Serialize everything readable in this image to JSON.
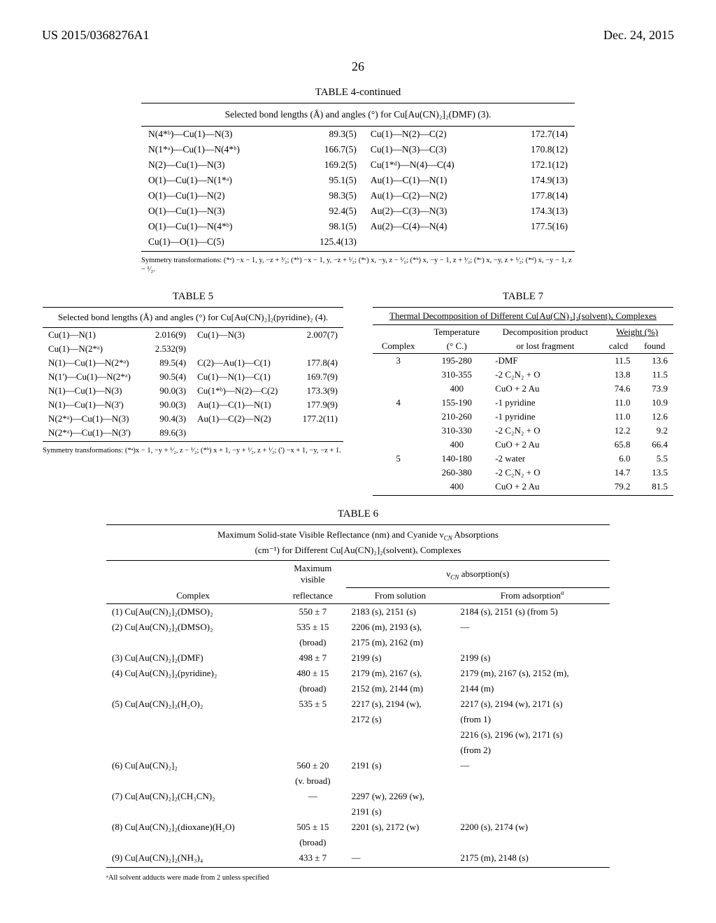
{
  "header": {
    "left": "US 2015/0368276A1",
    "right": "Dec. 24, 2015",
    "page": "26"
  },
  "table4": {
    "title": "TABLE 4-continued",
    "subtitle": "Selected bond lengths (Å) and angles (°) for Cu[Au(CN)₂]₂(DMF) (3).",
    "rows": [
      [
        "N(4*ᵇ)—Cu(1)—N(3)",
        "89.3(5)",
        "Cu(1)—N(2)—C(2)",
        "172.7(14)"
      ],
      [
        "N(1*ᵃ)—Cu(1)—N(4*ᵇ)",
        "166.7(5)",
        "Cu(1)—N(3)—C(3)",
        "170.8(12)"
      ],
      [
        "N(2)—Cu(1)—N(3)",
        "169.2(5)",
        "Cu(1*ᵈ)—N(4)—C(4)",
        "172.1(12)"
      ],
      [
        "O(1)—Cu(1)—N(1*ᵃ)",
        "95.1(5)",
        "Au(1)—C(1)—N(1)",
        "174.9(13)"
      ],
      [
        "O(1)—Cu(1)—N(2)",
        "98.3(5)",
        "Au(1)—C(2)—N(2)",
        "177.8(14)"
      ],
      [
        "O(1)—Cu(1)—N(3)",
        "92.4(5)",
        "Au(2)—C(3)—N(3)",
        "174.3(13)"
      ],
      [
        "O(1)—Cu(1)—N(4*ᵇ)",
        "98.1(5)",
        "Au(2)—C(4)—N(4)",
        "177.5(16)"
      ],
      [
        "Cu(1)—O(1)—C(5)",
        "125.4(13)",
        "",
        ""
      ]
    ],
    "footnote": "Symmetry transformations: (*ᵃ) −x − 1, y, −z + ³⁄₂; (*ᵇ) −x − 1, y, −z + ¹⁄₂; (*ᶜ) x, −y, z − ¹⁄₂; (*ᵇ) x, −y − 1, z + ¹⁄₂; (*ᶜ) x, −y, z + ¹⁄₂; (*ᵈ) x, −y − 1, z − ¹⁄₂."
  },
  "table5": {
    "title": "TABLE 5",
    "subtitle": "Selected bond lengths (Å) and angles (°) for Cu[Au(CN)₂]₂(pyridine)₂ (4).",
    "rows": [
      [
        "Cu(1)—N(1)",
        "2.016(9)",
        "Cu(1)—N(3)",
        "2.007(7)"
      ],
      [
        "Cu(1)—N(2*ᵃ)",
        "2.532(9)",
        "",
        ""
      ],
      [
        "N(1)—Cu(1)—N(2*ᵃ)",
        "89.5(4)",
        "C(2)—Au(1)—C(1)",
        "177.8(4)"
      ],
      [
        "N(1')—Cu(1)—N(2*ᵃ)",
        "90.5(4)",
        "Cu(1)—N(1)—C(1)",
        "169.7(9)"
      ],
      [
        "N(1)—Cu(1)—N(3)",
        "90.0(3)",
        "Cu(1*ᵇ)—N(2)—C(2)",
        "173.3(9)"
      ],
      [
        "N(1)—Cu(1)—N(3')",
        "90.0(3)",
        "Au(1)—C(1)—N(1)",
        "177.9(9)"
      ],
      [
        "N(2*ᵃ)—Cu(1)—N(3)",
        "90.4(3)",
        "Au(1)—C(2)—N(2)",
        "177.2(11)"
      ],
      [
        "N(2*ᵃ)—Cu(1)—N(3')",
        "89.6(3)",
        "",
        ""
      ]
    ],
    "footnote": "Symmetry transformations: (*ᵃ)x − 1, −y + ¹⁄₂, z − ¹⁄₂; (*ᵇ) x + 1, −y + ¹⁄₂, z + ¹⁄₂; (') −x + 1, −y, −z + 1."
  },
  "table7": {
    "title": "TABLE 7",
    "subtitle": "Thermal Decomposition of Different Cu[Au(CN)₂]₂(solvent)ₓ Complexes",
    "head": [
      "Complex",
      "Temperature (° C.)",
      "Decomposition product or lost fragment",
      "calcd",
      "found"
    ],
    "weight_head": "Weight (%)",
    "rows": [
      [
        "3",
        "195-280",
        "-DMF",
        "11.5",
        "13.6"
      ],
      [
        "",
        "310-355",
        "-2 C₂N₂ + O",
        "13.8",
        "11.5"
      ],
      [
        "",
        "400",
        "CuO + 2 Au",
        "74.6",
        "73.9"
      ],
      [
        "4",
        "155-190",
        "-1 pyridine",
        "11.0",
        "10.9"
      ],
      [
        "",
        "210-260",
        "-1 pyridine",
        "11.0",
        "12.6"
      ],
      [
        "",
        "310-330",
        "-2 C₂N₂ + O",
        "12.2",
        "9.2"
      ],
      [
        "",
        "400",
        "CuO + 2 Au",
        "65.8",
        "66.4"
      ],
      [
        "5",
        "140-180",
        "-2 water",
        "6.0",
        "5.5"
      ],
      [
        "",
        "260-380",
        "-2 C₂N₂ + O",
        "14.7",
        "13.5"
      ],
      [
        "",
        "400",
        "CuO + 2 Au",
        "79.2",
        "81.5"
      ]
    ]
  },
  "table6": {
    "title": "TABLE 6",
    "subtitle_l1": "Maximum Solid-state Visible Reflectance (nm) and Cyanide ν_CN Absorptions",
    "subtitle_l2": "(cm⁻¹) for Different Cu[Au(CN)₂]₂(solvent)ₓ Complexes",
    "head1": [
      "",
      "Maximum visible",
      "ν_CN absorption(s)"
    ],
    "head2": [
      "Complex",
      "reflectance",
      "From solution",
      "From adsorptionᵃ"
    ],
    "rows": [
      [
        "(1) Cu[Au(CN)₂]₂(DMSO)₂",
        "550 ± 7",
        "2183 (s), 2151 (s)",
        "2184 (s), 2151 (s) (from 5)"
      ],
      [
        "(2) Cu[Au(CN)₂]₂(DMSO)₂",
        "535 ± 15",
        "2206 (m), 2193 (s),",
        "—"
      ],
      [
        "",
        "(broad)",
        "2175 (m), 2162 (m)",
        ""
      ],
      [
        "(3) Cu[Au(CN)₂]₂(DMF)",
        "498 ± 7",
        "2199 (s)",
        "2199 (s)"
      ],
      [
        "(4) Cu[Au(CN)₂]₂(pyridine)₂",
        "480 ± 15",
        "2179 (m), 2167 (s),",
        "2179 (m), 2167 (s), 2152 (m),"
      ],
      [
        "",
        "(broad)",
        "2152 (m), 2144 (m)",
        "2144 (m)"
      ],
      [
        "(5) Cu[Au(CN)₂]₂(H₂O)₂",
        "535 ± 5",
        "2217 (s), 2194 (w),",
        "2217 (s), 2194 (w), 2171 (s)"
      ],
      [
        "",
        "",
        "2172 (s)",
        "(from 1)"
      ],
      [
        "",
        "",
        "",
        "2216 (s), 2196 (w), 2171 (s)"
      ],
      [
        "",
        "",
        "",
        "(from 2)"
      ],
      [
        "(6) Cu[Au(CN)₂]₂",
        "560 ± 20",
        "2191 (s)",
        "—"
      ],
      [
        "",
        "(v. broad)",
        "",
        ""
      ],
      [
        "(7) Cu[Au(CN)₂]₂(CH₃CN)₂",
        "—",
        "2297 (w), 2269 (w),",
        ""
      ],
      [
        "",
        "",
        "2191 (s)",
        ""
      ],
      [
        "(8) Cu[Au(CN)₂]₂(dioxane)(H₂O)",
        "505 ± 15",
        "2201 (s), 2172 (w)",
        "2200 (s), 2174 (w)"
      ],
      [
        "",
        "(broad)",
        "",
        ""
      ],
      [
        "(9) Cu[Au(CN)₂]₂(NH₃)₄",
        "433 ± 7",
        "—",
        "2175 (m), 2148 (s)"
      ]
    ],
    "footnote": "ᵃAll solvent adducts were made from 2 unless specified"
  }
}
